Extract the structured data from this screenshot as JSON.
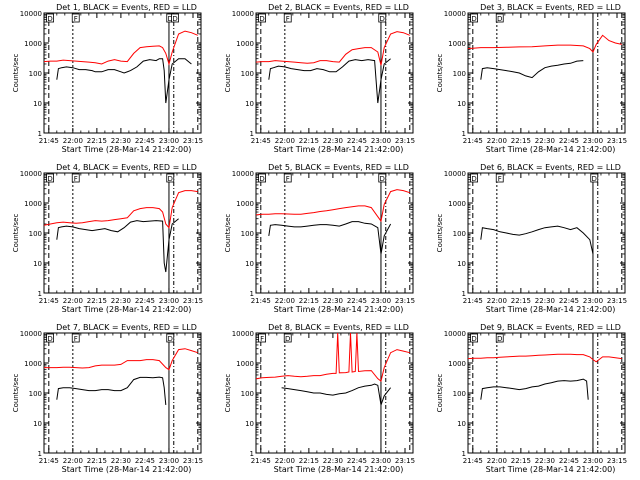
{
  "figure": {
    "xlabel": "Start Time (28-Mar-14 21:42:00)",
    "ylabel": "Counts/sec",
    "x_ticks": [
      "21:45",
      "22:00",
      "22:15",
      "22:30",
      "22:45",
      "23:00",
      "23:15"
    ],
    "y_ticks": [
      "1",
      "10",
      "100",
      "1000",
      "10000"
    ],
    "series_colors": {
      "events": "#000000",
      "lld": "#ff0000"
    }
  },
  "chart_data": [
    {
      "type": "line",
      "title": "Det 1, BLACK = Events, RED = LLD",
      "x_unit": "minutes after 21:42:00",
      "ylim": [
        1,
        10000
      ],
      "yscale": "log",
      "xlim": [
        0,
        98
      ],
      "flags": [
        "D",
        "F",
        "D",
        "D"
      ],
      "series": [
        {
          "name": "Events",
          "color": "#000000",
          "x": [
            8,
            9,
            11,
            14,
            18,
            22,
            26,
            30,
            32,
            36,
            40,
            44,
            48,
            50,
            54,
            58,
            62,
            66,
            70,
            72,
            74,
            75,
            76,
            78,
            80,
            84,
            88,
            92
          ],
          "y": [
            60,
            140,
            150,
            160,
            150,
            130,
            130,
            120,
            110,
            110,
            130,
            130,
            110,
            100,
            120,
            160,
            250,
            280,
            260,
            300,
            300,
            120,
            10,
            60,
            200,
            300,
            300,
            200
          ]
        },
        {
          "name": "LLD",
          "color": "#ff0000",
          "x": [
            0,
            4,
            8,
            12,
            16,
            20,
            24,
            28,
            32,
            36,
            40,
            44,
            48,
            52,
            56,
            60,
            64,
            68,
            72,
            74,
            76,
            78,
            80,
            84,
            88,
            92,
            96
          ],
          "y": [
            240,
            250,
            250,
            270,
            260,
            250,
            240,
            230,
            220,
            200,
            250,
            280,
            250,
            240,
            450,
            700,
            750,
            780,
            800,
            700,
            450,
            200,
            500,
            2000,
            2500,
            2200,
            1800
          ]
        }
      ]
    },
    {
      "type": "line",
      "title": "Det 2, BLACK = Events, RED = LLD",
      "x_unit": "minutes after 21:42:00",
      "ylim": [
        1,
        10000
      ],
      "yscale": "log",
      "xlim": [
        0,
        98
      ],
      "flags": [
        "D",
        "F",
        "D"
      ],
      "series": [
        {
          "name": "Events",
          "color": "#000000",
          "x": [
            8,
            9,
            11,
            14,
            18,
            22,
            26,
            30,
            34,
            38,
            42,
            46,
            50,
            54,
            58,
            62,
            66,
            70,
            74,
            76,
            78,
            80,
            84
          ],
          "y": [
            60,
            140,
            150,
            170,
            160,
            140,
            130,
            120,
            120,
            140,
            130,
            110,
            110,
            160,
            250,
            280,
            260,
            280,
            260,
            10,
            60,
            200,
            300
          ]
        },
        {
          "name": "LLD",
          "color": "#ff0000",
          "x": [
            0,
            4,
            8,
            12,
            16,
            20,
            24,
            28,
            32,
            36,
            40,
            44,
            48,
            52,
            56,
            60,
            64,
            68,
            72,
            76,
            78,
            80,
            84,
            88,
            92,
            96
          ],
          "y": [
            230,
            240,
            240,
            260,
            250,
            240,
            230,
            220,
            210,
            220,
            260,
            260,
            240,
            230,
            420,
            600,
            650,
            700,
            700,
            500,
            180,
            700,
            2000,
            2400,
            2200,
            1800
          ]
        }
      ]
    },
    {
      "type": "line",
      "title": "Det 3, BLACK = Events, RED = LLD",
      "x_unit": "minutes after 21:42:00",
      "ylim": [
        1,
        10000
      ],
      "yscale": "log",
      "xlim": [
        0,
        98
      ],
      "flags": [
        "D",
        "D"
      ],
      "series": [
        {
          "name": "Events",
          "color": "#000000",
          "x": [
            8,
            9,
            12,
            16,
            20,
            24,
            28,
            32,
            36,
            40,
            44,
            48,
            52,
            56,
            60,
            64,
            68,
            72
          ],
          "y": [
            60,
            140,
            150,
            140,
            130,
            120,
            110,
            100,
            80,
            70,
            110,
            150,
            170,
            180,
            200,
            210,
            250,
            260
          ]
        },
        {
          "name": "LLD",
          "color": "#ff0000",
          "x": [
            0,
            8,
            16,
            24,
            32,
            40,
            48,
            56,
            64,
            72,
            76,
            78,
            80,
            84,
            88,
            92,
            96
          ],
          "y": [
            650,
            700,
            700,
            720,
            740,
            750,
            800,
            850,
            850,
            800,
            650,
            500,
            900,
            1800,
            1200,
            1000,
            900
          ]
        }
      ]
    },
    {
      "type": "line",
      "title": "Det 4, BLACK = Events, RED = LLD",
      "x_unit": "minutes after 21:42:00",
      "ylim": [
        1,
        10000
      ],
      "yscale": "log",
      "xlim": [
        0,
        98
      ],
      "flags": [
        "D",
        "F",
        "D"
      ],
      "series": [
        {
          "name": "Events",
          "color": "#000000",
          "x": [
            8,
            9,
            11,
            14,
            18,
            22,
            26,
            30,
            34,
            38,
            42,
            46,
            50,
            54,
            58,
            62,
            66,
            70,
            74,
            75,
            76,
            78,
            80,
            84
          ],
          "y": [
            60,
            150,
            160,
            170,
            160,
            140,
            130,
            120,
            130,
            140,
            120,
            110,
            150,
            230,
            260,
            240,
            250,
            260,
            250,
            10,
            5,
            60,
            200,
            300
          ]
        },
        {
          "name": "LLD",
          "color": "#ff0000",
          "x": [
            0,
            4,
            8,
            12,
            16,
            20,
            24,
            28,
            32,
            36,
            40,
            44,
            48,
            52,
            56,
            60,
            64,
            68,
            72,
            74,
            76,
            78,
            80,
            84,
            88,
            92,
            96
          ],
          "y": [
            180,
            200,
            220,
            230,
            220,
            210,
            220,
            240,
            260,
            250,
            260,
            280,
            300,
            320,
            550,
            650,
            700,
            700,
            650,
            500,
            200,
            150,
            700,
            2200,
            2600,
            2600,
            2400
          ]
        }
      ]
    },
    {
      "type": "line",
      "title": "Det 5, BLACK = Events, RED = LLD",
      "x_unit": "minutes after 21:42:00",
      "ylim": [
        1,
        10000
      ],
      "yscale": "log",
      "xlim": [
        0,
        98
      ],
      "flags": [
        "D",
        "F",
        "D"
      ],
      "series": [
        {
          "name": "Events",
          "color": "#000000",
          "x": [
            8,
            9,
            12,
            16,
            20,
            24,
            28,
            32,
            36,
            40,
            44,
            48,
            52,
            56,
            60,
            64,
            68,
            72,
            76,
            78,
            80,
            84
          ],
          "y": [
            80,
            180,
            190,
            180,
            170,
            160,
            160,
            170,
            180,
            190,
            190,
            180,
            170,
            200,
            240,
            240,
            210,
            200,
            150,
            20,
            80,
            200
          ]
        },
        {
          "name": "LLD",
          "color": "#ff0000",
          "x": [
            0,
            4,
            8,
            12,
            16,
            20,
            24,
            28,
            32,
            36,
            40,
            44,
            48,
            52,
            56,
            60,
            64,
            68,
            72,
            76,
            78,
            80,
            84,
            88,
            92,
            96
          ],
          "y": [
            400,
            420,
            420,
            440,
            440,
            430,
            420,
            420,
            450,
            480,
            520,
            550,
            600,
            650,
            700,
            750,
            800,
            800,
            700,
            350,
            250,
            900,
            2400,
            2800,
            2600,
            2200
          ]
        }
      ]
    },
    {
      "type": "line",
      "title": "Det 6, BLACK = Events, RED = LLD",
      "x_unit": "minutes after 21:42:00",
      "ylim": [
        1,
        10000
      ],
      "yscale": "log",
      "xlim": [
        0,
        98
      ],
      "flags": [
        "D",
        "F",
        "D"
      ],
      "series": [
        {
          "name": "Events",
          "color": "#000000",
          "x": [
            8,
            9,
            12,
            16,
            20,
            24,
            28,
            32,
            36,
            40,
            44,
            48,
            52,
            56,
            60,
            64,
            68,
            72,
            76,
            78
          ],
          "y": [
            60,
            150,
            140,
            130,
            110,
            100,
            90,
            85,
            95,
            110,
            130,
            150,
            160,
            170,
            150,
            130,
            150,
            100,
            60,
            20
          ]
        }
      ]
    },
    {
      "type": "line",
      "title": "Det 7, BLACK = Events, RED = LLD",
      "x_unit": "minutes after 21:42:00",
      "ylim": [
        1,
        10000
      ],
      "yscale": "log",
      "xlim": [
        0,
        98
      ],
      "flags": [
        "D",
        "F",
        "D"
      ],
      "series": [
        {
          "name": "Events",
          "color": "#000000",
          "x": [
            8,
            9,
            12,
            16,
            20,
            24,
            28,
            32,
            36,
            40,
            44,
            48,
            52,
            56,
            60,
            64,
            68,
            72,
            74,
            75,
            76
          ],
          "y": [
            60,
            140,
            150,
            150,
            140,
            130,
            120,
            120,
            130,
            130,
            120,
            120,
            150,
            280,
            330,
            330,
            320,
            340,
            320,
            150,
            40
          ]
        },
        {
          "name": "LLD",
          "color": "#ff0000",
          "x": [
            0,
            4,
            8,
            12,
            16,
            20,
            24,
            28,
            32,
            36,
            40,
            44,
            48,
            52,
            56,
            60,
            64,
            68,
            72,
            76,
            78,
            80,
            84,
            88,
            92,
            96
          ],
          "y": [
            700,
            700,
            700,
            720,
            720,
            700,
            680,
            700,
            800,
            850,
            850,
            850,
            900,
            1200,
            1200,
            1200,
            1300,
            1300,
            1200,
            700,
            600,
            1200,
            2800,
            3000,
            2600,
            2200
          ]
        }
      ]
    },
    {
      "type": "line",
      "title": "Det 8, BLACK = Events, RED = LLD",
      "x_unit": "minutes after 21:42:00",
      "ylim": [
        1,
        10000
      ],
      "yscale": "log",
      "xlim": [
        0,
        98
      ],
      "flags": [
        "F",
        "D"
      ],
      "series": [
        {
          "name": "Events",
          "color": "#000000",
          "x": [
            16,
            20,
            24,
            28,
            32,
            36,
            40,
            44,
            48,
            52,
            56,
            60,
            64,
            68,
            72,
            74,
            76,
            78,
            80,
            84
          ],
          "y": [
            150,
            140,
            130,
            120,
            110,
            100,
            100,
            90,
            85,
            95,
            100,
            120,
            150,
            170,
            180,
            200,
            180,
            40,
            80,
            150
          ]
        },
        {
          "name": "LLD",
          "color": "#ff0000",
          "x": [
            0,
            4,
            8,
            12,
            16,
            20,
            24,
            28,
            32,
            36,
            40,
            44,
            48,
            50,
            51,
            52,
            56,
            58,
            59,
            60,
            62,
            63,
            64,
            68,
            72,
            76,
            78,
            80,
            84,
            88,
            92,
            96
          ],
          "y": [
            300,
            320,
            330,
            340,
            360,
            380,
            360,
            350,
            360,
            380,
            380,
            420,
            450,
            450,
            10000,
            470,
            480,
            500,
            10000,
            500,
            520,
            10000,
            520,
            550,
            560,
            300,
            250,
            700,
            2200,
            2800,
            2500,
            2200
          ]
        }
      ]
    },
    {
      "type": "line",
      "title": "Det 9, BLACK = Events, RED = LLD",
      "x_unit": "minutes after 21:42:00",
      "ylim": [
        1,
        10000
      ],
      "yscale": "log",
      "xlim": [
        0,
        98
      ],
      "flags": [
        "D",
        "D"
      ],
      "series": [
        {
          "name": "Events",
          "color": "#000000",
          "x": [
            8,
            9,
            12,
            16,
            20,
            24,
            28,
            32,
            36,
            40,
            44,
            48,
            52,
            56,
            60,
            64,
            68,
            72,
            74,
            75
          ],
          "y": [
            60,
            140,
            150,
            160,
            160,
            150,
            140,
            130,
            140,
            160,
            170,
            200,
            220,
            250,
            260,
            250,
            260,
            290,
            250,
            60
          ]
        },
        {
          "name": "LLD",
          "color": "#ff0000",
          "x": [
            0,
            4,
            8,
            12,
            16,
            20,
            24,
            28,
            32,
            36,
            40,
            44,
            48,
            52,
            56,
            60,
            64,
            68,
            72,
            76,
            78,
            80,
            84,
            88,
            92,
            96
          ],
          "y": [
            1400,
            1450,
            1450,
            1500,
            1500,
            1550,
            1600,
            1650,
            1700,
            1700,
            1750,
            1800,
            1850,
            1900,
            1950,
            1950,
            1950,
            1900,
            1900,
            1600,
            1300,
            1100,
            1600,
            1600,
            1500,
            1400
          ]
        }
      ]
    }
  ]
}
